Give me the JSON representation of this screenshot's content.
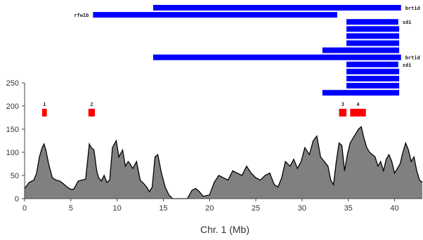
{
  "chart_data": {
    "type": "area",
    "xlabel": "Chr. 1 (Mb)",
    "ylabel": "",
    "title": "",
    "xlim": [
      0,
      43
    ],
    "ylim": [
      0,
      250
    ],
    "xticks": [
      "0",
      "5",
      "10",
      "15",
      "20",
      "25",
      "30",
      "35",
      "40"
    ],
    "yticks": [
      "0",
      "50",
      "100",
      "150",
      "200",
      "250"
    ],
    "grid": false,
    "colors": {
      "area_fill": "#808080",
      "area_line": "#000000",
      "bar": "#0000ff",
      "region": "#ff0000"
    },
    "series": [
      {
        "x": [
          0,
          0.5,
          1,
          1.3,
          1.6,
          1.9,
          2.1,
          2.3,
          2.6,
          3.0,
          3.4,
          3.8,
          4.2,
          4.6,
          5.0,
          5.3,
          5.8,
          6.2,
          6.6,
          6.8,
          7.0,
          7.2,
          7.5,
          7.8,
          8.0,
          8.3,
          8.6,
          8.9,
          9.2,
          9.5,
          9.9,
          10.2,
          10.6,
          10.9,
          11.2,
          11.4,
          11.7,
          12.1,
          12.5,
          12.9,
          13.2,
          13.5,
          13.8,
          14.1,
          14.4,
          14.8,
          15.2,
          15.6,
          16.0,
          17.0,
          17.6,
          18.1,
          18.5,
          18.9,
          19.3,
          20.0,
          20.5,
          21.0,
          21.5,
          22.0,
          22.5,
          23.0,
          23.5,
          24.0,
          24.5,
          25.0,
          25.5,
          26.0,
          26.5,
          27.0,
          27.4,
          27.8,
          28.2,
          28.7,
          29.1,
          29.5,
          29.9,
          30.3,
          30.8,
          31.2,
          31.6,
          32.0,
          32.4,
          32.8,
          33.1,
          33.4,
          33.7,
          34.0,
          34.3,
          34.6,
          34.9,
          35.2,
          35.5,
          35.8,
          36.1,
          36.4,
          36.7,
          37.0,
          37.3,
          37.6,
          37.9,
          38.2,
          38.5,
          38.8,
          39.1,
          39.4,
          39.7,
          40.0,
          40.3,
          40.6,
          40.9,
          41.2,
          41.5,
          41.8,
          42.1,
          42.4,
          42.7,
          43.0
        ],
        "y": [
          22,
          35,
          40,
          55,
          90,
          110,
          118,
          105,
          75,
          45,
          40,
          38,
          32,
          25,
          20,
          20,
          38,
          40,
          42,
          80,
          118,
          110,
          105,
          60,
          45,
          38,
          50,
          35,
          40,
          110,
          125,
          90,
          105,
          70,
          80,
          75,
          65,
          80,
          40,
          32,
          25,
          15,
          25,
          90,
          95,
          55,
          25,
          8,
          0,
          0,
          0,
          18,
          22,
          15,
          5,
          8,
          35,
          50,
          45,
          40,
          60,
          55,
          50,
          70,
          55,
          45,
          40,
          50,
          55,
          30,
          25,
          45,
          80,
          70,
          85,
          65,
          80,
          110,
          95,
          125,
          135,
          90,
          80,
          70,
          40,
          30,
          80,
          120,
          115,
          60,
          95,
          120,
          130,
          140,
          150,
          155,
          130,
          110,
          100,
          95,
          90,
          70,
          80,
          60,
          85,
          95,
          80,
          55,
          65,
          75,
          100,
          120,
          105,
          80,
          90,
          60,
          40,
          35
        ]
      }
    ],
    "regions": [
      {
        "label": "1",
        "start": 1.9,
        "end": 2.4
      },
      {
        "label": "2",
        "start": 6.9,
        "end": 7.6
      },
      {
        "label": "3",
        "start": 34.0,
        "end": 34.8
      },
      {
        "label": "4",
        "start": 35.2,
        "end": 36.9
      }
    ],
    "bars": [
      {
        "start": 13.9,
        "end": 40.7,
        "label": "brtid"
      },
      {
        "start": 7.4,
        "end": 33.8,
        "label_left": "rfw1b"
      },
      {
        "start": 34.8,
        "end": 40.4,
        "label": "sdi"
      },
      {
        "start": 34.8,
        "end": 40.5
      },
      {
        "start": 34.8,
        "end": 40.5
      },
      {
        "start": 34.8,
        "end": 40.5
      },
      {
        "start": 32.2,
        "end": 40.5
      },
      {
        "start": 13.9,
        "end": 40.7,
        "label": "brtid"
      },
      {
        "start": 34.8,
        "end": 40.4,
        "label": "sdi"
      },
      {
        "start": 34.8,
        "end": 40.5
      },
      {
        "start": 34.8,
        "end": 40.5
      },
      {
        "start": 34.8,
        "end": 40.5
      },
      {
        "start": 32.2,
        "end": 40.5
      }
    ]
  }
}
